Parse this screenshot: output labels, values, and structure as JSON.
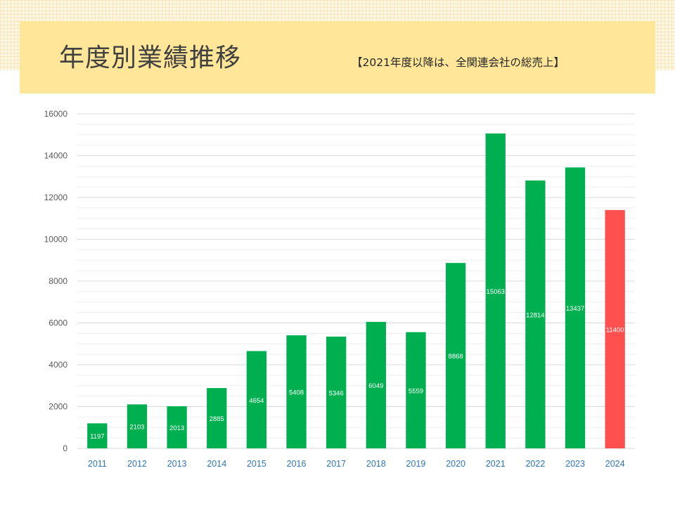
{
  "header": {
    "title": "年度別業績推移",
    "subtitle": "【2021年度以降は、全関連会社の総売上】"
  },
  "colors": {
    "bar": "#00b050",
    "highlight_bar": "#ff5050",
    "title_band": "#ffe699",
    "axis_label": "#2e75b6"
  },
  "chart_data": {
    "type": "bar",
    "title": "",
    "xlabel": "",
    "ylabel": "",
    "categories": [
      "2011",
      "2012",
      "2013",
      "2014",
      "2015",
      "2016",
      "2017",
      "2018",
      "2019",
      "2020",
      "2021",
      "2022",
      "2023",
      "2024"
    ],
    "values": [
      1197,
      2103,
      2013,
      2885,
      4654,
      5408,
      5346,
      6049,
      5559,
      8868,
      15063,
      12814,
      13437,
      11400
    ],
    "data_labels": [
      "1197",
      "2103",
      "2013",
      "2885",
      "4654",
      "5408",
      "5346",
      "6049",
      "5559",
      "8868",
      "15063",
      "12814",
      "13437",
      "11400"
    ],
    "highlight_categories": [
      "2024"
    ],
    "ylim": [
      0,
      16000
    ],
    "yticks": [
      "0",
      "2000",
      "4000",
      "6000",
      "8000",
      "10000",
      "12000",
      "14000",
      "16000"
    ],
    "grid": true,
    "legend": "none"
  }
}
